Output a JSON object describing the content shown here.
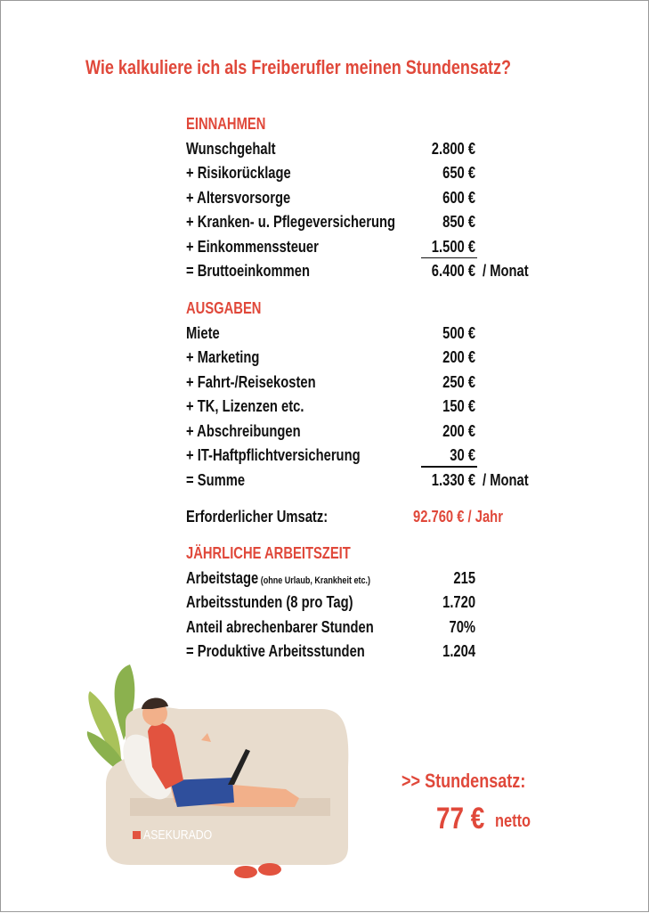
{
  "title": "Wie kalkuliere ich als Freiberufler meinen Stundensatz?",
  "income": {
    "heading": "EINNAHMEN",
    "rows": [
      {
        "label": "Wunschgehalt",
        "value": "2.800 €"
      },
      {
        "label": "+ Risikorücklage",
        "value": "650 €"
      },
      {
        "label": "+ Altersvorsorge",
        "value": "600 €"
      },
      {
        "label": "+ Kranken- u. Pflegeversicherung",
        "value": "850 €"
      },
      {
        "label": "+ Einkommenssteuer",
        "value": "1.500 €"
      }
    ],
    "total": {
      "label": "= Bruttoeinkommen",
      "value": "6.400 €",
      "unit": "/ Monat"
    }
  },
  "expenses": {
    "heading": "AUSGABEN",
    "rows": [
      {
        "label": "Miete",
        "value": "500 €"
      },
      {
        "label": "+ Marketing",
        "value": "200 €"
      },
      {
        "label": "+ Fahrt-/Reisekosten",
        "value": "250 €"
      },
      {
        "label": "+ TK, Lizenzen etc.",
        "value": "150 €"
      },
      {
        "label": "+ Abschreibungen",
        "value": "200 €"
      },
      {
        "label": "+ IT-Haftpflichtversicherung",
        "value": "30 €"
      }
    ],
    "total": {
      "label": "= Summe",
      "value": "1.330 €",
      "unit": "/ Monat"
    }
  },
  "revenue": {
    "label": "Erforderlicher Umsatz:",
    "value": "92.760 € / Jahr"
  },
  "worktime": {
    "heading": "JÄHRLICHE ARBEITSZEIT",
    "rows": [
      {
        "label": "Arbeitstage",
        "note": "(ohne Urlaub, Krankheit etc.)",
        "value": "215"
      },
      {
        "label": "Arbeitsstunden (8 pro Tag)",
        "value": "1.720"
      },
      {
        "label": "Anteil abrechenbarer Stunden",
        "value": "70%"
      },
      {
        "label": "= Produktive Arbeitsstunden",
        "value": "1.204"
      }
    ]
  },
  "rate": {
    "label": ">> Stundensatz:",
    "value": "77 €",
    "suffix": "netto"
  },
  "brand": "ASEKURADO"
}
